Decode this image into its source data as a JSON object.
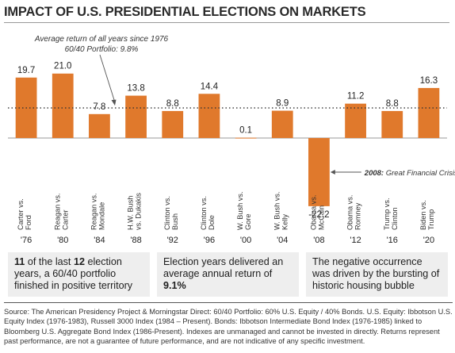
{
  "page": {
    "title": "IMPACT OF U.S. PRESIDENTIAL ELECTIONS ON MARKETS"
  },
  "chart_data": {
    "type": "bar",
    "categories": [
      [
        "Carter vs.",
        "Ford"
      ],
      [
        "Reagan vs.",
        "Carter"
      ],
      [
        "Reagan vs.",
        "Mondale"
      ],
      [
        "H.W. Bush",
        "vs. Dukakis"
      ],
      [
        "Clinton vs.",
        "Bush"
      ],
      [
        "Clinton vs.",
        "Dole"
      ],
      [
        "W. Bush vs.",
        "Gore"
      ],
      [
        "W. Bush vs.",
        "Kelly"
      ],
      [
        "Obama vs.",
        "McCain"
      ],
      [
        "Obama vs.",
        "Romney"
      ],
      [
        "Trump vs.",
        "Clinton"
      ],
      [
        "Biden vs.",
        "Trump"
      ]
    ],
    "years": [
      "'76",
      "'80",
      "'84",
      "'88",
      "'92",
      "'96",
      "'00",
      "'04",
      "'08",
      "'12",
      "'16",
      "'20"
    ],
    "values": [
      19.7,
      21.0,
      7.8,
      13.8,
      8.8,
      14.4,
      0.1,
      8.9,
      -22.2,
      11.2,
      8.8,
      16.3
    ],
    "value_labels": [
      "19.7",
      "21.0",
      "7.8",
      "13.8",
      "8.8",
      "14.4",
      "0.1",
      "8.9",
      "-22.2",
      "11.2",
      "8.8",
      "16.3"
    ],
    "ylim": [
      -25,
      23
    ],
    "bar_color": "#e0792c",
    "average_line": {
      "value": 9.8,
      "label_line1": "Average return of all years since 1976",
      "label_line2": "60/40 Portfolio: 9.8%"
    },
    "annotation": {
      "year_text": "2008:",
      "text": " Great Financial Crisis"
    }
  },
  "boxes": [
    {
      "b1": "11",
      "t1": " of the last ",
      "b2": "12",
      "t2": " election years, a 60/40 portfolio finished in positive territory"
    },
    {
      "t1": "Election years delivered an average annual return of ",
      "b1": "9.1%"
    },
    {
      "t1": "The negative occurrence was driven by the bursting of historic housing bubble"
    }
  ],
  "source": "Source: The American Presidency Project & Morningstar Direct: 60/40 Portfolio: 60% U.S. Equity / 40% Bonds. U.S. Equity: Ibbotson U.S. Equity Index (1976-1983), Russell 3000 Index (1984 – Present). Bonds: Ibbotson Intermediate Bond Index (1976-1985) linked to Bloomberg U.S. Aggregate Bond Index (1986-Present). Indexes are unmanaged and cannot be invested in directly. Returns represent past performance, are not a guarantee of future performance, and are not indicative of any specific investment."
}
